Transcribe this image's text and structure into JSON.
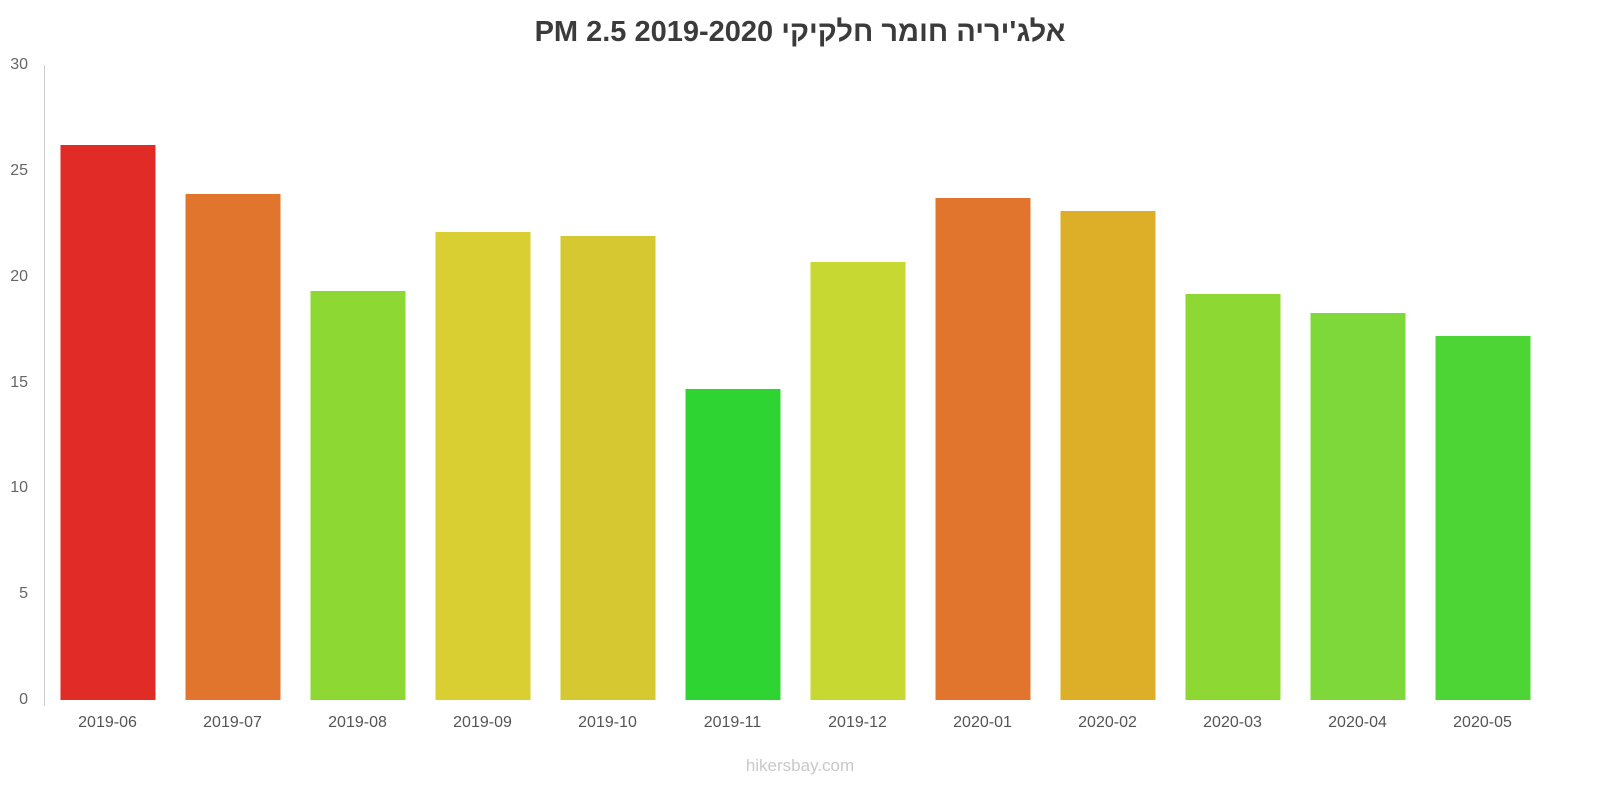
{
  "title": "אלג'יריה חומר חלקיקי PM 2.5 2019-2020",
  "footer": "hikersbay.com",
  "colors": {
    "axis": "#cccccc",
    "y_tick_label": "#666666",
    "x_tick_label": "#555555",
    "title": "#3b3b3b",
    "footer": "#c9c9c9",
    "background": "#ffffff"
  },
  "chart_data": {
    "type": "bar",
    "title": "אלג'יריה חומר חלקיקי PM 2.5 2019-2020",
    "xlabel": "",
    "ylabel": "",
    "ylim": [
      0,
      30
    ],
    "yticks": [
      0,
      5,
      10,
      15,
      20,
      25,
      30
    ],
    "grid": false,
    "legend": false,
    "categories": [
      "2019-06",
      "2019-07",
      "2019-08",
      "2019-09",
      "2019-10",
      "2019-11",
      "2019-12",
      "2020-01",
      "2020-02",
      "2020-03",
      "2020-04",
      "2020-05"
    ],
    "values": [
      26.2,
      23.9,
      19.3,
      22.1,
      21.9,
      14.7,
      20.7,
      23.7,
      23.1,
      19.2,
      18.3,
      17.2
    ],
    "bar_colors": [
      "#e02b27",
      "#e1752d",
      "#8ed833",
      "#d9ce32",
      "#d6c831",
      "#2ed431",
      "#c6d831",
      "#e1752d",
      "#ddae28",
      "#8ed833",
      "#7fd83a",
      "#4cd535"
    ]
  }
}
